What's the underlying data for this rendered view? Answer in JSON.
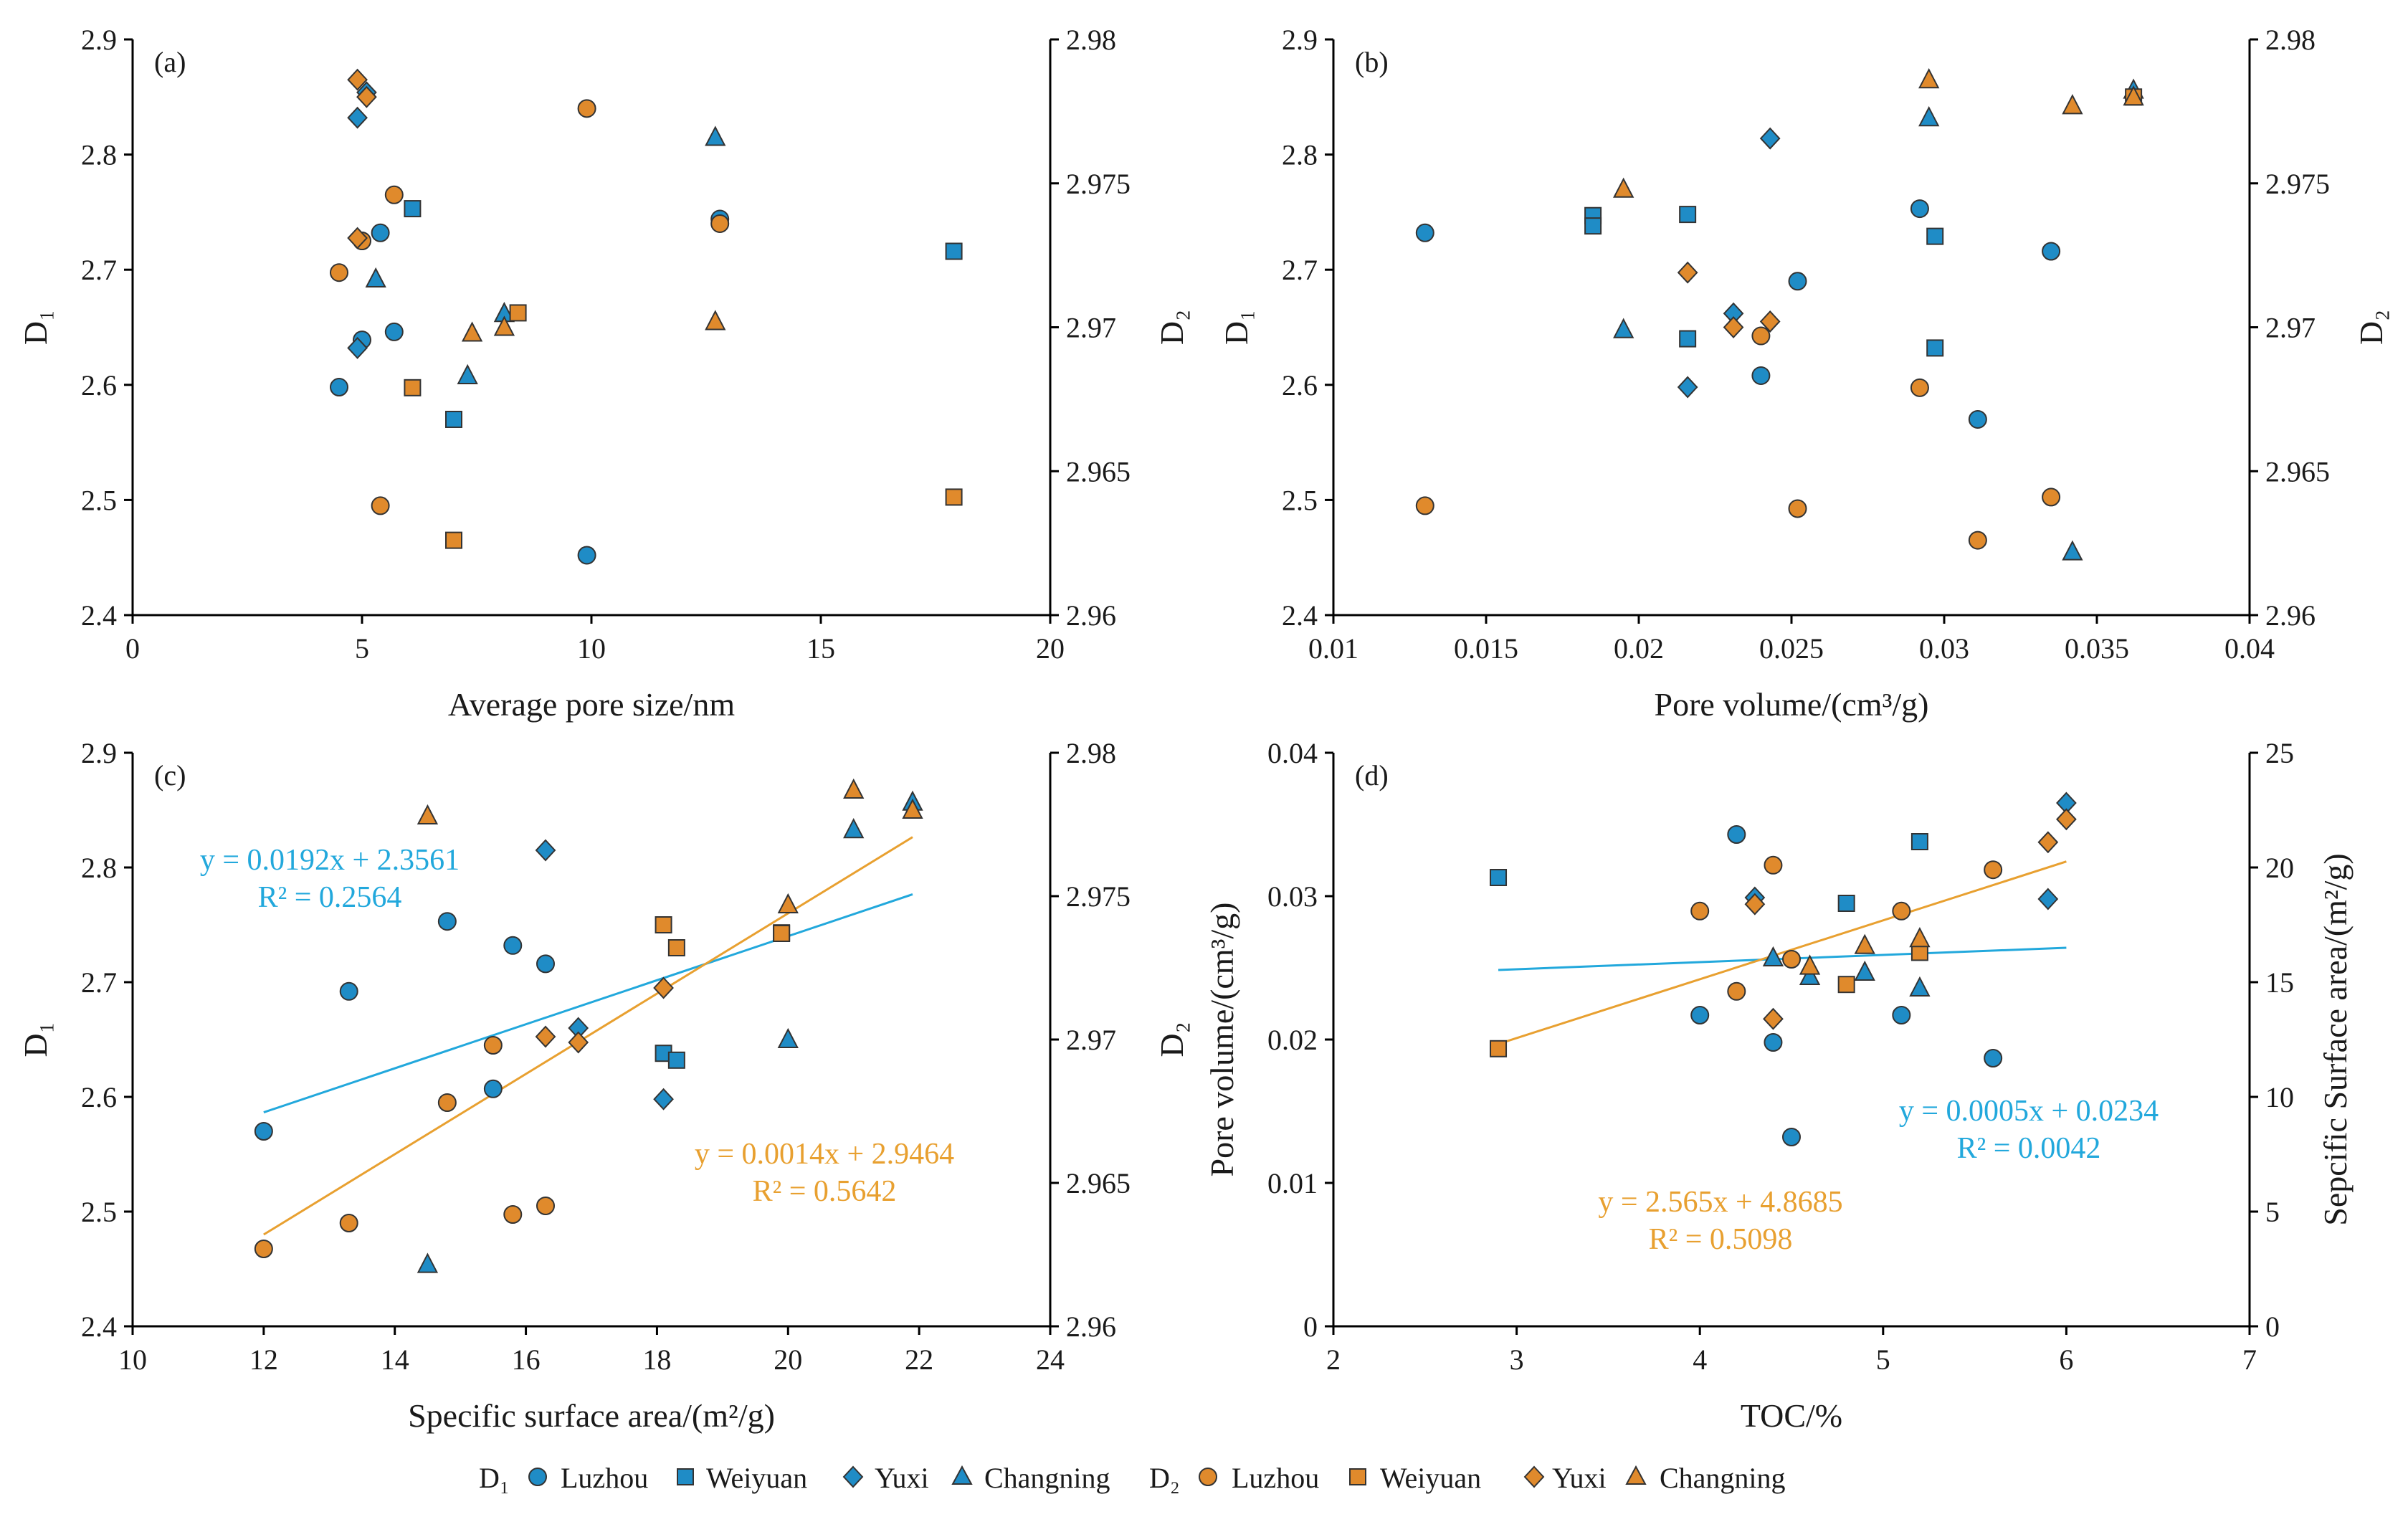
{
  "colors": {
    "d1": "#1f8cc6",
    "d2": "#e08a2c",
    "stroke": "#333333",
    "trend_d1": "#22a8dc",
    "trend_d2": "#e8a030"
  },
  "legend": {
    "d1_label": "D₁",
    "d2_label": "D₂",
    "entries": [
      "Luzhou",
      "Weiyuan",
      "Yuxi",
      "Changning"
    ]
  },
  "chart_data": [
    {
      "type": "scatter",
      "panel_label": "(a)",
      "xlabel": "Average pore size/nm",
      "ylabel": "D₁",
      "y2label": "D₂",
      "xlim": [
        0,
        20
      ],
      "xticks": [
        0,
        5,
        10,
        15,
        20
      ],
      "xtick_labels": [
        "0",
        "5",
        "10",
        "15",
        "20"
      ],
      "ylim": [
        2.4,
        2.9
      ],
      "yticks": [
        2.4,
        2.5,
        2.6,
        2.7,
        2.8,
        2.9
      ],
      "ytick_labels": [
        "2.4",
        "2.5",
        "2.6",
        "2.7",
        "2.8",
        "2.9"
      ],
      "y2lim": [
        2.96,
        2.98
      ],
      "y2ticks": [
        2.96,
        2.965,
        2.97,
        2.975,
        2.98
      ],
      "y2tick_labels": [
        "2.96",
        "2.965",
        "2.97",
        "2.975",
        "2.98"
      ],
      "series": [
        {
          "name": "Luzhou",
          "dim": "D1",
          "marker": "circle",
          "points": [
            [
              4.5,
              2.598
            ],
            [
              5.0,
              2.639
            ],
            [
              5.4,
              2.732
            ],
            [
              5.7,
              2.646
            ],
            [
              9.9,
              2.452
            ],
            [
              12.8,
              2.744
            ]
          ]
        },
        {
          "name": "Weiyuan",
          "dim": "D1",
          "marker": "square",
          "points": [
            [
              6.1,
              2.753
            ],
            [
              7.0,
              2.57
            ],
            [
              17.9,
              2.716
            ]
          ]
        },
        {
          "name": "Yuxi",
          "dim": "D1",
          "marker": "diamond",
          "points": [
            [
              4.9,
              2.832
            ],
            [
              4.9,
              2.632
            ],
            [
              5.1,
              2.854
            ]
          ]
        },
        {
          "name": "Changning",
          "dim": "D1",
          "marker": "triangle",
          "points": [
            [
              5.3,
              2.692
            ],
            [
              7.3,
              2.608
            ],
            [
              8.1,
              2.662
            ],
            [
              12.7,
              2.815
            ]
          ]
        },
        {
          "name": "Luzhou",
          "dim": "D2",
          "marker": "circle",
          "points": [
            [
              4.5,
              2.9719
            ],
            [
              5.0,
              2.973
            ],
            [
              5.4,
              2.9638
            ],
            [
              5.7,
              2.9746
            ],
            [
              9.9,
              2.9776
            ],
            [
              12.8,
              2.9736
            ]
          ]
        },
        {
          "name": "Weiyuan",
          "dim": "D2",
          "marker": "square",
          "points": [
            [
              6.1,
              2.9679
            ],
            [
              7.0,
              2.9626
            ],
            [
              8.4,
              2.9705
            ],
            [
              17.9,
              2.9641
            ]
          ]
        },
        {
          "name": "Yuxi",
          "dim": "D2",
          "marker": "diamond",
          "points": [
            [
              4.9,
              2.9786
            ],
            [
              4.9,
              2.9731
            ],
            [
              5.1,
              2.978
            ]
          ]
        },
        {
          "name": "Changning",
          "dim": "D2",
          "marker": "triangle",
          "points": [
            [
              7.4,
              2.9698
            ],
            [
              8.1,
              2.97
            ],
            [
              12.7,
              2.9702
            ]
          ]
        }
      ],
      "trendlines": [],
      "annotations": []
    },
    {
      "type": "scatter",
      "panel_label": "(b)",
      "xlabel": "Pore volume/(cm³/g)",
      "ylabel": "D₁",
      "y2label": "D₂",
      "xlim": [
        0.01,
        0.04
      ],
      "xticks": [
        0.01,
        0.015,
        0.02,
        0.025,
        0.03,
        0.035,
        0.04
      ],
      "xtick_labels": [
        "0.01",
        "0.015",
        "0.02",
        "0.025",
        "0.03",
        "0.035",
        "0.04"
      ],
      "ylim": [
        2.4,
        2.9
      ],
      "yticks": [
        2.4,
        2.5,
        2.6,
        2.7,
        2.8,
        2.9
      ],
      "ytick_labels": [
        "2.4",
        "2.5",
        "2.6",
        "2.7",
        "2.8",
        "2.9"
      ],
      "y2lim": [
        2.96,
        2.98
      ],
      "y2ticks": [
        2.96,
        2.965,
        2.97,
        2.975,
        2.98
      ],
      "y2tick_labels": [
        "2.96",
        "2.965",
        "2.97",
        "2.975",
        "2.98"
      ],
      "series": [
        {
          "name": "Luzhou",
          "dim": "D1",
          "marker": "circle",
          "points": [
            [
              0.013,
              2.732
            ],
            [
              0.024,
              2.608
            ],
            [
              0.0252,
              2.69
            ],
            [
              0.0292,
              2.753
            ],
            [
              0.0311,
              2.57
            ],
            [
              0.0335,
              2.716
            ]
          ]
        },
        {
          "name": "Weiyuan",
          "dim": "D1",
          "marker": "square",
          "points": [
            [
              0.0185,
              2.747
            ],
            [
              0.0185,
              2.738
            ],
            [
              0.0216,
              2.748
            ],
            [
              0.0216,
              2.64
            ],
            [
              0.0297,
              2.729
            ],
            [
              0.0297,
              2.632
            ]
          ]
        },
        {
          "name": "Yuxi",
          "dim": "D1",
          "marker": "diamond",
          "points": [
            [
              0.0216,
              2.598
            ],
            [
              0.0231,
              2.662
            ],
            [
              0.0243,
              2.814
            ]
          ]
        },
        {
          "name": "Changning",
          "dim": "D1",
          "marker": "triangle",
          "points": [
            [
              0.0195,
              2.648
            ],
            [
              0.0295,
              2.832
            ],
            [
              0.0342,
              2.455
            ],
            [
              0.0362,
              2.856
            ]
          ]
        },
        {
          "name": "Luzhou",
          "dim": "D2",
          "marker": "circle",
          "points": [
            [
              0.013,
              2.9638
            ],
            [
              0.024,
              2.9697
            ],
            [
              0.0252,
              2.9637
            ],
            [
              0.0292,
              2.9679
            ],
            [
              0.0311,
              2.9626
            ],
            [
              0.0335,
              2.9641
            ]
          ]
        },
        {
          "name": "Weiyuan",
          "dim": "D2",
          "marker": "square",
          "points": [
            [
              0.0362,
              2.978
            ]
          ]
        },
        {
          "name": "Yuxi",
          "dim": "D2",
          "marker": "diamond",
          "points": [
            [
              0.0216,
              2.9719
            ],
            [
              0.0231,
              2.97
            ],
            [
              0.0243,
              2.9702
            ]
          ]
        },
        {
          "name": "Changning",
          "dim": "D2",
          "marker": "triangle",
          "points": [
            [
              0.0195,
              2.9748
            ],
            [
              0.0295,
              2.9786
            ],
            [
              0.0342,
              2.9777
            ],
            [
              0.0362,
              2.978
            ]
          ]
        }
      ],
      "trendlines": [],
      "annotations": []
    },
    {
      "type": "scatter",
      "panel_label": "(c)",
      "xlabel": "Specific surface area/(m²/g)",
      "ylabel": "D₁",
      "y2label": "D₂",
      "xlim": [
        10,
        24
      ],
      "xticks": [
        10,
        12,
        14,
        16,
        18,
        20,
        22,
        24
      ],
      "xtick_labels": [
        "10",
        "12",
        "14",
        "16",
        "18",
        "20",
        "22",
        "24"
      ],
      "ylim": [
        2.4,
        2.9
      ],
      "yticks": [
        2.4,
        2.5,
        2.6,
        2.7,
        2.8,
        2.9
      ],
      "ytick_labels": [
        "2.4",
        "2.5",
        "2.6",
        "2.7",
        "2.8",
        "2.9"
      ],
      "y2lim": [
        2.96,
        2.98
      ],
      "y2ticks": [
        2.96,
        2.965,
        2.97,
        2.975,
        2.98
      ],
      "y2tick_labels": [
        "2.96",
        "2.965",
        "2.97",
        "2.975",
        "2.98"
      ],
      "series": [
        {
          "name": "Luzhou",
          "dim": "D1",
          "marker": "circle",
          "points": [
            [
              12.0,
              2.57
            ],
            [
              13.3,
              2.692
            ],
            [
              14.8,
              2.753
            ],
            [
              15.5,
              2.607
            ],
            [
              15.8,
              2.732
            ],
            [
              16.3,
              2.716
            ]
          ]
        },
        {
          "name": "Weiyuan",
          "dim": "D1",
          "marker": "square",
          "points": [
            [
              18.1,
              2.638
            ],
            [
              18.3,
              2.632
            ],
            [
              19.9,
              2.743
            ]
          ]
        },
        {
          "name": "Yuxi",
          "dim": "D1",
          "marker": "diamond",
          "points": [
            [
              16.3,
              2.815
            ],
            [
              16.8,
              2.66
            ],
            [
              18.1,
              2.598
            ]
          ]
        },
        {
          "name": "Changning",
          "dim": "D1",
          "marker": "triangle",
          "points": [
            [
              14.5,
              2.454
            ],
            [
              20.0,
              2.65
            ],
            [
              21.0,
              2.833
            ],
            [
              21.9,
              2.857
            ]
          ]
        },
        {
          "name": "Luzhou",
          "dim": "D2",
          "marker": "circle",
          "points": [
            [
              12.0,
              2.9627
            ],
            [
              13.3,
              2.9636
            ],
            [
              14.8,
              2.9678
            ],
            [
              15.5,
              2.9698
            ],
            [
              15.8,
              2.9639
            ],
            [
              16.3,
              2.9642
            ]
          ]
        },
        {
          "name": "Weiyuan",
          "dim": "D2",
          "marker": "square",
          "points": [
            [
              18.1,
              2.974
            ],
            [
              18.3,
              2.9732
            ],
            [
              19.9,
              2.9737
            ]
          ]
        },
        {
          "name": "Yuxi",
          "dim": "D2",
          "marker": "diamond",
          "points": [
            [
              16.3,
              2.9701
            ],
            [
              16.8,
              2.9699
            ],
            [
              18.1,
              2.9718
            ]
          ]
        },
        {
          "name": "Changning",
          "dim": "D2",
          "marker": "triangle",
          "points": [
            [
              14.5,
              2.9778
            ],
            [
              20.0,
              2.9747
            ],
            [
              21.0,
              2.9787
            ],
            [
              21.9,
              2.978
            ]
          ]
        }
      ],
      "trendlines": [
        {
          "axis": "y1",
          "color_key": "trend_d1",
          "slope": 0.0192,
          "intercept": 2.3561,
          "x_range": [
            12.0,
            21.9
          ]
        },
        {
          "axis": "y2",
          "color_key": "trend_d2",
          "slope": 0.0014,
          "intercept": 2.9464,
          "x_range": [
            12.0,
            21.9
          ]
        }
      ],
      "annotations": [
        {
          "color_key": "trend_d1",
          "lines": [
            "y = 0.0192x + 2.3561",
            "R² = 0.2564"
          ]
        },
        {
          "color_key": "trend_d2",
          "lines": [
            "y = 0.0014x + 2.9464",
            "R² = 0.5642"
          ]
        }
      ]
    },
    {
      "type": "scatter",
      "panel_label": "(d)",
      "xlabel": "TOC/%",
      "ylabel": "Pore volume/(cm³/g)",
      "y2label": "Sepcific Surface  area/(m²/g)",
      "xlim": [
        2,
        7
      ],
      "xticks": [
        2,
        3,
        4,
        5,
        6,
        7
      ],
      "xtick_labels": [
        "2",
        "3",
        "4",
        "5",
        "6",
        "7"
      ],
      "ylim": [
        0,
        0.04
      ],
      "yticks": [
        0,
        0.01,
        0.02,
        0.03,
        0.04
      ],
      "ytick_labels": [
        "0",
        "0.01",
        "0.02",
        "0.03",
        "0.04"
      ],
      "y2lim": [
        0,
        25
      ],
      "y2ticks": [
        0,
        5,
        10,
        15,
        20,
        25
      ],
      "y2tick_labels": [
        "0",
        "5",
        "10",
        "15",
        "20",
        "25"
      ],
      "series": [
        {
          "name": "Luzhou",
          "dim": "D1",
          "marker": "circle",
          "points": [
            [
              4.0,
              0.0217
            ],
            [
              4.2,
              0.0343
            ],
            [
              4.4,
              0.0198
            ],
            [
              4.5,
              0.0132
            ],
            [
              5.1,
              0.0217
            ],
            [
              5.6,
              0.0187
            ]
          ]
        },
        {
          "name": "Weiyuan",
          "dim": "D1",
          "marker": "square",
          "points": [
            [
              2.9,
              0.0313
            ],
            [
              4.8,
              0.0295
            ],
            [
              5.2,
              0.0338
            ]
          ]
        },
        {
          "name": "Yuxi",
          "dim": "D1",
          "marker": "diamond",
          "points": [
            [
              4.3,
              0.0299
            ],
            [
              5.9,
              0.0298
            ],
            [
              6.0,
              0.0365
            ]
          ]
        },
        {
          "name": "Changning",
          "dim": "D1",
          "marker": "triangle",
          "points": [
            [
              4.4,
              0.0257
            ],
            [
              4.6,
              0.0244
            ],
            [
              4.9,
              0.0247
            ],
            [
              5.2,
              0.0236
            ]
          ]
        },
        {
          "name": "Luzhou",
          "dim": "D2",
          "marker": "circle",
          "points": [
            [
              4.0,
              18.1
            ],
            [
              4.2,
              14.6
            ],
            [
              4.4,
              20.1
            ],
            [
              4.5,
              16.0
            ],
            [
              5.1,
              18.1
            ],
            [
              5.6,
              19.9
            ]
          ]
        },
        {
          "name": "Weiyuan",
          "dim": "D2",
          "marker": "square",
          "points": [
            [
              2.9,
              12.1
            ],
            [
              4.8,
              14.9
            ],
            [
              5.2,
              16.3
            ]
          ]
        },
        {
          "name": "Yuxi",
          "dim": "D2",
          "marker": "diamond",
          "points": [
            [
              4.3,
              18.4
            ],
            [
              4.4,
              13.4
            ],
            [
              5.9,
              21.1
            ],
            [
              6.0,
              22.1
            ]
          ]
        },
        {
          "name": "Changning",
          "dim": "D2",
          "marker": "triangle",
          "points": [
            [
              4.6,
              15.7
            ],
            [
              4.9,
              16.6
            ],
            [
              5.2,
              16.9
            ]
          ]
        }
      ],
      "trendlines": [
        {
          "axis": "y1",
          "color_key": "trend_d1",
          "slope": 0.0005,
          "intercept": 0.0234,
          "x_range": [
            2.9,
            6.0
          ]
        },
        {
          "axis": "y2",
          "color_key": "trend_d2",
          "slope": 2.565,
          "intercept": 4.8685,
          "x_range": [
            2.9,
            6.0
          ]
        }
      ],
      "annotations": [
        {
          "color_key": "trend_d1",
          "lines": [
            "y = 0.0005x + 0.0234",
            "R² = 0.0042"
          ]
        },
        {
          "color_key": "trend_d2",
          "lines": [
            "y = 2.565x + 4.8685",
            "R² = 0.5098"
          ]
        }
      ]
    }
  ]
}
